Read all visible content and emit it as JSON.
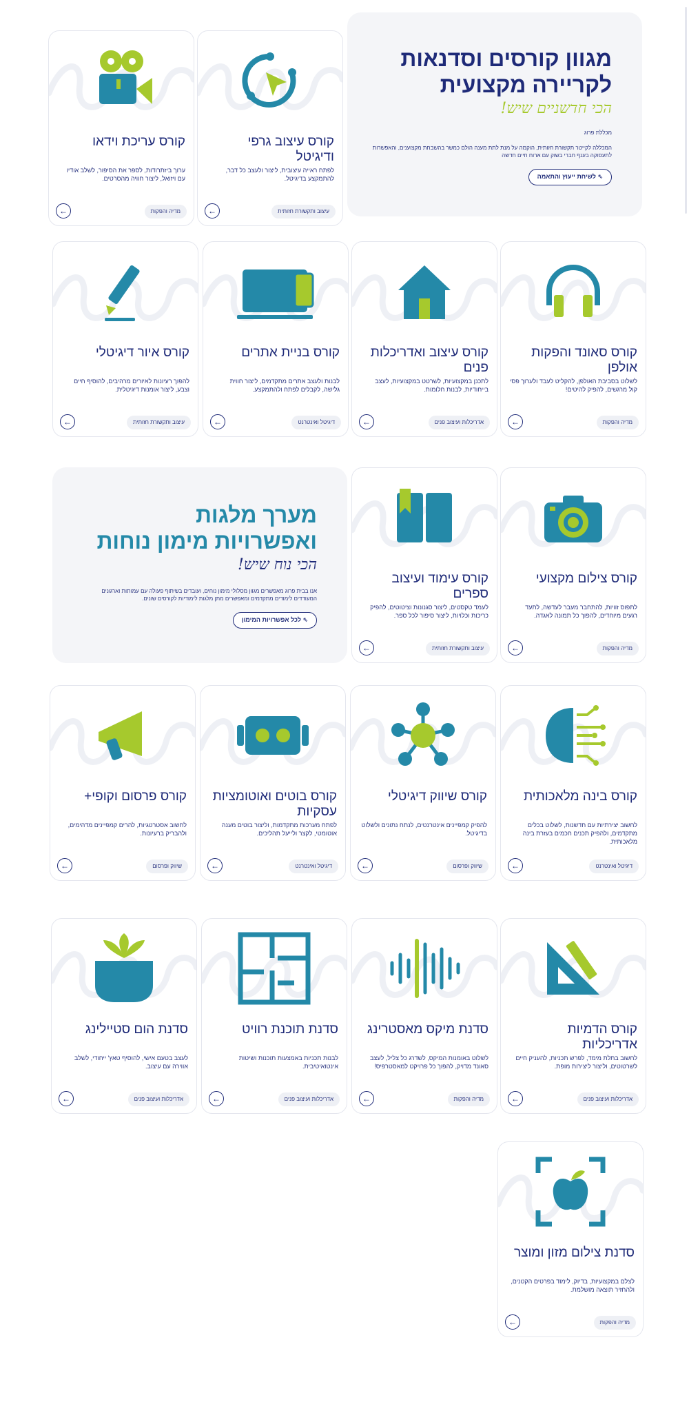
{
  "hero_main": {
    "title_line1": "מגוון קורסים וסדנאות",
    "title_line2": "לקריירה מקצועית",
    "script": "הכי חדשניים שיש!",
    "small": "מכללת פרוג",
    "description": "המכללה לקייטר תקשורת חזותית, הוקמה על מנת לתת מענה הולם כמשר בהשבחת מקצוענים, והאפשרות לתעסוקה בענף חברי בשוק עם ארוח חיים חדשה",
    "button": "לשיחת ייעוץ והתאמה"
  },
  "hero_second": {
    "title_line1": "מערך מלגות",
    "title_line2": "ואפשרויות מימון נוחות",
    "script": "הכי נוח שיש!",
    "description": "אנו בבית פרוג מאפשרים מגוון מסלולי מימון נוחים, ועובדים בשיתוף פעולה עם עמותות וארגונים המעודדים לימודים מתקדמים ומאפשרים מתן מלגות לימודיות לקורסים שונים.",
    "button": "לכל אפשרויות המימון"
  },
  "cards": [
    {
      "id": "graphic",
      "title": "קורס עיצוב גרפי ודיגיטל",
      "desc": "לפתח ראייה עיצובית, ליצור ולעצב כל דבר, להתמקצע בדיגיטל.",
      "tag": "עיצוב ותקשורת חזותית",
      "icon": "cursor-cycle-icon"
    },
    {
      "id": "video",
      "title": "קורס עריכת וידאו",
      "desc": "ערוך ביזתרודות, לספר את הסיפור, לשלב אודיו עם ויזואל, ליצור חוויה מהסרטים.",
      "tag": "מדיה והפקות",
      "icon": "film-camera-icon"
    },
    {
      "id": "sound",
      "title": "קורס סאונד והפקות אולפן",
      "desc": "לשלוט בסביבת האולפן, להקליט לעבד ולערוך פסי קול מרגשים, להפיק להיטים!",
      "tag": "מדיה והפקות",
      "icon": "headphones-icon"
    },
    {
      "id": "interior",
      "title": "קורס עיצוב ואדריכלות פנים",
      "desc": "לתכנן במקצועיות, לשרטט במקצועיות, לעצב בייחודיות, לבנות חלומות.",
      "tag": "אדריכלות ועיצוב פנים",
      "icon": "house-icon"
    },
    {
      "id": "web",
      "title": "קורס בניית אתרים",
      "desc": "לבנות ולעצב אתרים מתקדמים, ליצור חווית גלישה, לקבלים לפתח ולהתמקצע.",
      "tag": "דיגיטל ואינטרנט",
      "icon": "devices-icon"
    },
    {
      "id": "illustration",
      "title": "קורס איור דיגיטלי",
      "desc": "להפוך רעיונות לאיורים מרהיבים, להוסיף חיים וצבע, ליצור אומנות דיגיטלית.",
      "tag": "עיצוב ותקשורת חזותית",
      "icon": "pencil-icon"
    },
    {
      "id": "photo",
      "title": "קורס צילום מקצועי",
      "desc": "לתפוס זוויות, להתחבר מעבר לעדשה, לתעד רגעים מיוחדים, להפוך כל תמונה לאגדה.",
      "tag": "מדיה והפקות",
      "icon": "camera-icon"
    },
    {
      "id": "books",
      "title": "קורס עימוד ועיצוב ספרים",
      "desc": "לעמד טקסטים, ליצור סגנונות וציטוטים, להפיק כריכות וכלויות, ליצור סיפור לכל ספר.",
      "tag": "עיצוב ותקשורת חזותית",
      "icon": "book-icon"
    },
    {
      "id": "ai",
      "title": "קורס בינה מלאכותית",
      "desc": "לחשוב יצירתיות עם חדשנות, לשלוט בכלים מתקדמים, ולהפיק תכנים חכמים בעזרת בינה מלאכותית.",
      "tag": "דיגיטל ואינטרנט",
      "icon": "ai-brain-icon"
    },
    {
      "id": "marketing",
      "title": "קורס שיווק דיגיטלי",
      "desc": "להפיק קמפיינים אינטרנטים, לנתח נתונים ולשלוט בדיגיטל.",
      "tag": "שיווק ופרסום",
      "icon": "network-icon"
    },
    {
      "id": "bots",
      "title": "קורס בוטים ואוטומציות עסקיות",
      "desc": "לפתח מערכות מתקדמות, וליצור בוטים מענה אוטומטי, לקצר ולייעל תהליכים.",
      "tag": "דיגיטל ואינטרנט",
      "icon": "robot-icon"
    },
    {
      "id": "ads",
      "title": "קורס פרסום וקופי+",
      "desc": "לחשוב אסטרטגיות, להרים קמפיינים מדהימים, ולהבריק ברעיונות.",
      "tag": "שיווק ופרסום",
      "icon": "megaphone-icon"
    },
    {
      "id": "archviz",
      "title": "קורס הדמיות אדריכליות",
      "desc": "לחשוב בתלת מימד, לפרש תכניות, להעניק חיים לשרטוטים, וליצור ליצירות מופת.",
      "tag": "אדריכלות ועיצוב פנים",
      "icon": "ruler-pencil-icon"
    },
    {
      "id": "mix",
      "title": "סדנת מיקס מאסטרינג",
      "desc": "לשלוט באומנות המיקס, לשדרג כל צליל, לעצב סאונד מדויק, להפוך כל פרויקט למאסטרפיס!",
      "tag": "מדיה והפקות",
      "icon": "soundwave-icon"
    },
    {
      "id": "revit",
      "title": "סדנת תוכנת רוויט",
      "desc": "לבנות תכניות באמצעות תוכנות ושיטות אינטואיטיבית.",
      "tag": "אדריכלות ועיצוב פנים",
      "icon": "floorplan-icon"
    },
    {
      "id": "homestyling",
      "title": "סדנת הום סטיילינג",
      "desc": "לעצב בטעם אישי, להוסיף טאץ' ייחודי, לשלב אווירה עם עיצוב.",
      "tag": "אדריכלות ועיצוב פנים",
      "icon": "plant-pot-icon"
    },
    {
      "id": "food",
      "title": "סדנת צילום מזון ומוצר",
      "desc": "לצלם במקצועיות, בדיוק, לימוד בפרטים הקטנים, ולהחזיר תוצאה מושלמת.",
      "tag": "מדיה והפקות",
      "icon": "apple-focus-icon"
    }
  ],
  "arrow_glyph": "←",
  "colors": {
    "navy": "#1e2a78",
    "teal": "#2489a8",
    "lime": "#a6c92d",
    "bg": "#f4f5f8"
  }
}
